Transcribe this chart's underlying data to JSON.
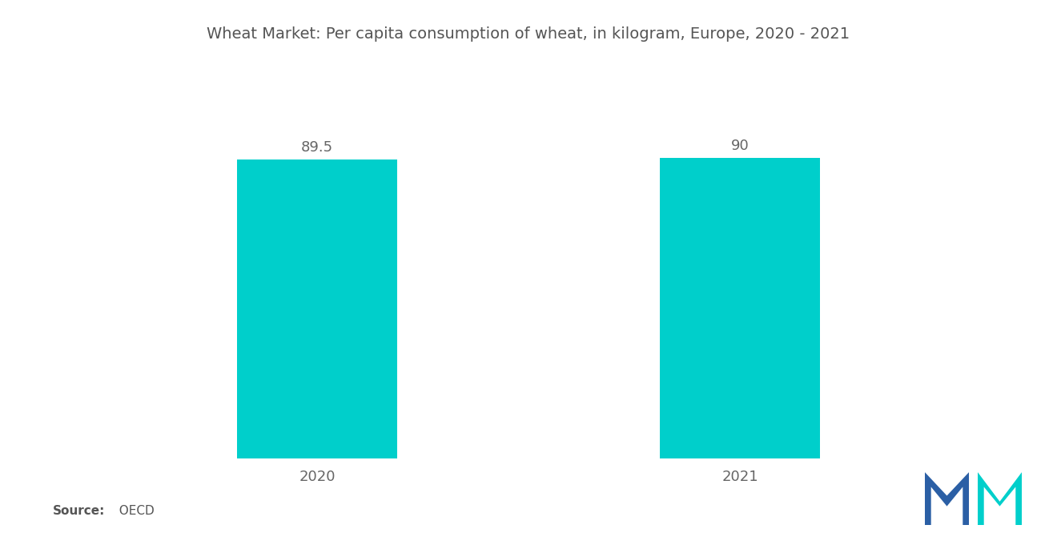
{
  "title": "Wheat Market: Per capita consumption of wheat, in kilogram, Europe, 2020 - 2021",
  "categories": [
    "2020",
    "2021"
  ],
  "values": [
    89.5,
    90
  ],
  "bar_color": "#00CFCB",
  "bar_labels": [
    "89.5",
    "90"
  ],
  "background_color": "#ffffff",
  "title_fontsize": 14,
  "label_fontsize": 13,
  "tick_fontsize": 13,
  "source_bold": "Source:",
  "source_normal": "  OECD",
  "ylim": [
    0,
    115
  ],
  "bar_width": 0.38,
  "xlim": [
    -0.5,
    1.5
  ]
}
